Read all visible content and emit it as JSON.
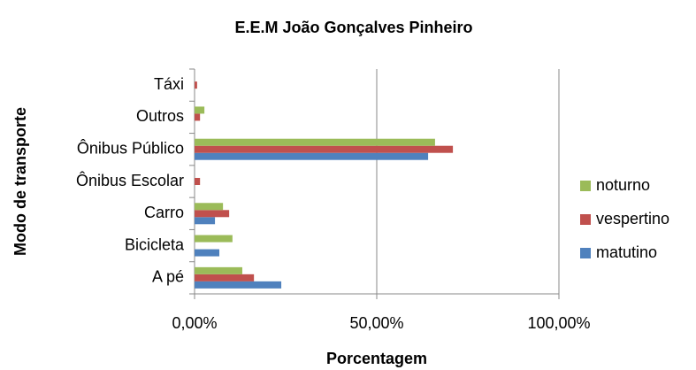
{
  "chart_data": {
    "type": "hbar",
    "title": "E.E.M João Gonçalves Pinheiro",
    "x_label": "Porcentagem",
    "y_label": "Modo  de transporte",
    "categories": [
      "A pé",
      "Bicicleta",
      "Carro",
      "Ônibus Escolar",
      "Ônibus Público",
      "Outros",
      "Táxi"
    ],
    "series": [
      {
        "name": "matutino",
        "color": "#4f81bd",
        "values": [
          23.8,
          6.8,
          5.6,
          0,
          64.1,
          0,
          0
        ]
      },
      {
        "name": "vespertino",
        "color": "#c0504d",
        "values": [
          16.3,
          0,
          9.5,
          1.5,
          70.9,
          1.5,
          0.7
        ]
      },
      {
        "name": "noturno",
        "color": "#9bbb59",
        "values": [
          13.1,
          10.4,
          7.8,
          0,
          66.0,
          2.7,
          0
        ]
      }
    ],
    "xlim": [
      0,
      100
    ],
    "xticks": [
      {
        "value": 0,
        "label": "0,00%"
      },
      {
        "value": 50,
        "label": "50,00%"
      },
      {
        "value": 100,
        "label": "100,00%"
      }
    ],
    "grid": true,
    "legend": "right"
  }
}
